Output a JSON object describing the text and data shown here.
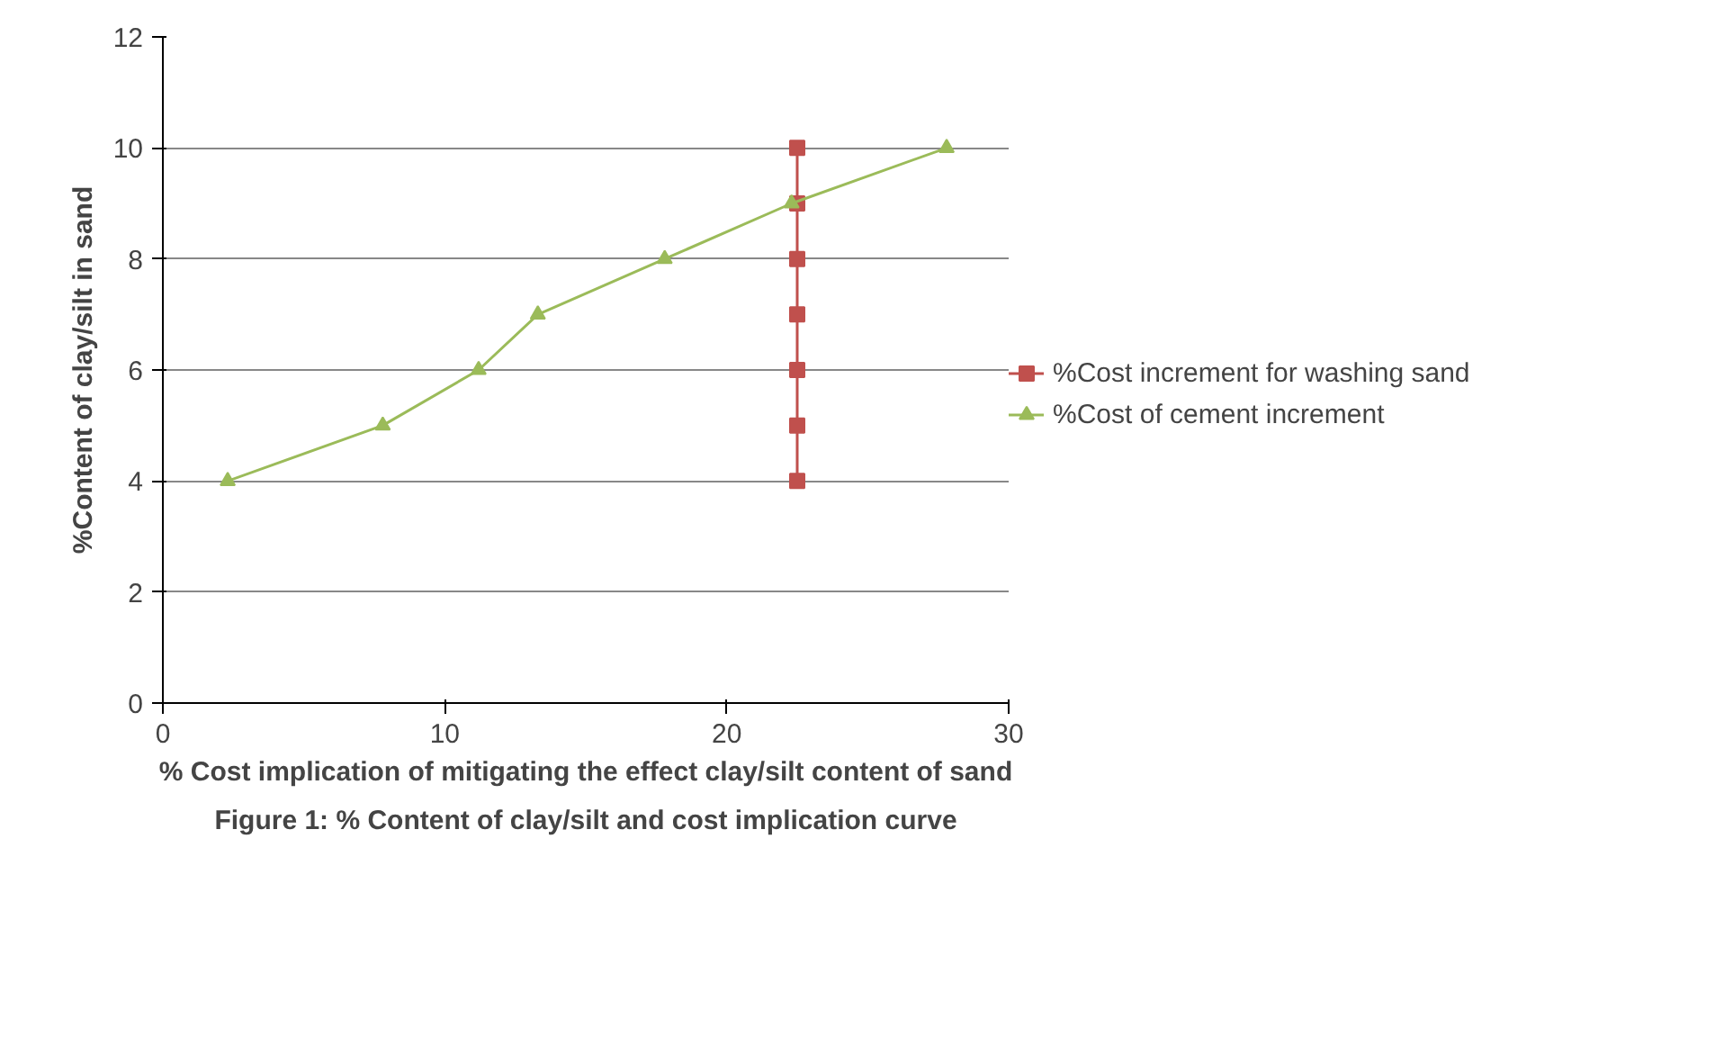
{
  "chart_data": {
    "type": "line",
    "xlabel": "% Cost implication of mitigating the effect clay/silt content of sand",
    "ylabel": "%Content of clay/silt in sand",
    "annotations": [
      "Figure 1: % Content of clay/silt and cost implication curve"
    ],
    "series": [
      {
        "name": "%Cost increment for washing sand",
        "color": "#c0504d",
        "marker": "square",
        "x": [
          22.5,
          22.5,
          22.5,
          22.5,
          22.5,
          22.5,
          22.5
        ],
        "values": [
          4,
          5,
          6,
          7,
          8,
          9,
          10
        ]
      },
      {
        "name": "%Cost of cement increment",
        "color": "#9bbb59",
        "marker": "triangle",
        "x": [
          2.3,
          7.8,
          11.2,
          13.3,
          17.8,
          22.3,
          27.8
        ],
        "values": [
          4,
          5,
          6,
          7,
          8,
          9,
          10
        ]
      }
    ],
    "xlim": [
      0,
      30
    ],
    "xticks": [
      0,
      10,
      20,
      30
    ],
    "ylim": [
      0,
      12
    ],
    "yticks": [
      0,
      2,
      4,
      6,
      8,
      10,
      12
    ],
    "grid": "y",
    "legend": "right"
  }
}
